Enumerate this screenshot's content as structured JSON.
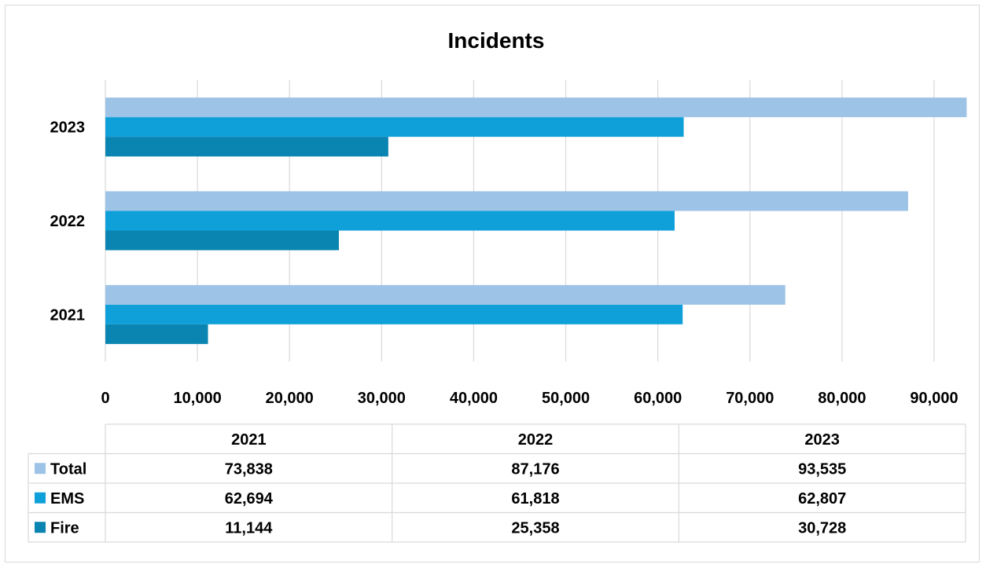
{
  "chart_data": {
    "type": "bar",
    "orientation": "horizontal",
    "title": "Incidents",
    "categories": [
      "2021",
      "2022",
      "2023"
    ],
    "series": [
      {
        "name": "Total",
        "color": "#9DC3E6",
        "values": [
          73838,
          87176,
          93535
        ]
      },
      {
        "name": "EMS",
        "color": "#0FA0DA",
        "values": [
          62694,
          61818,
          62807
        ]
      },
      {
        "name": "Fire",
        "color": "#0A84B0",
        "values": [
          11144,
          25358,
          30728
        ]
      }
    ],
    "xlim": [
      0,
      90000
    ],
    "xticks": [
      0,
      10000,
      20000,
      30000,
      40000,
      50000,
      60000,
      70000,
      80000,
      90000
    ],
    "xtick_labels": [
      "0",
      "10,000",
      "20,000",
      "30,000",
      "40,000",
      "50,000",
      "60,000",
      "70,000",
      "80,000",
      "90,000"
    ],
    "grid": true,
    "legend": "data table below chart",
    "data_table": {
      "columns": [
        "2021",
        "2022",
        "2023"
      ],
      "rows": [
        {
          "label": "Total",
          "values": [
            "73,838",
            "87,176",
            "93,535"
          ]
        },
        {
          "label": "EMS",
          "values": [
            "62,694",
            "61,818",
            "62,807"
          ]
        },
        {
          "label": "Fire",
          "values": [
            "11,144",
            "25,358",
            "30,728"
          ]
        }
      ]
    }
  }
}
